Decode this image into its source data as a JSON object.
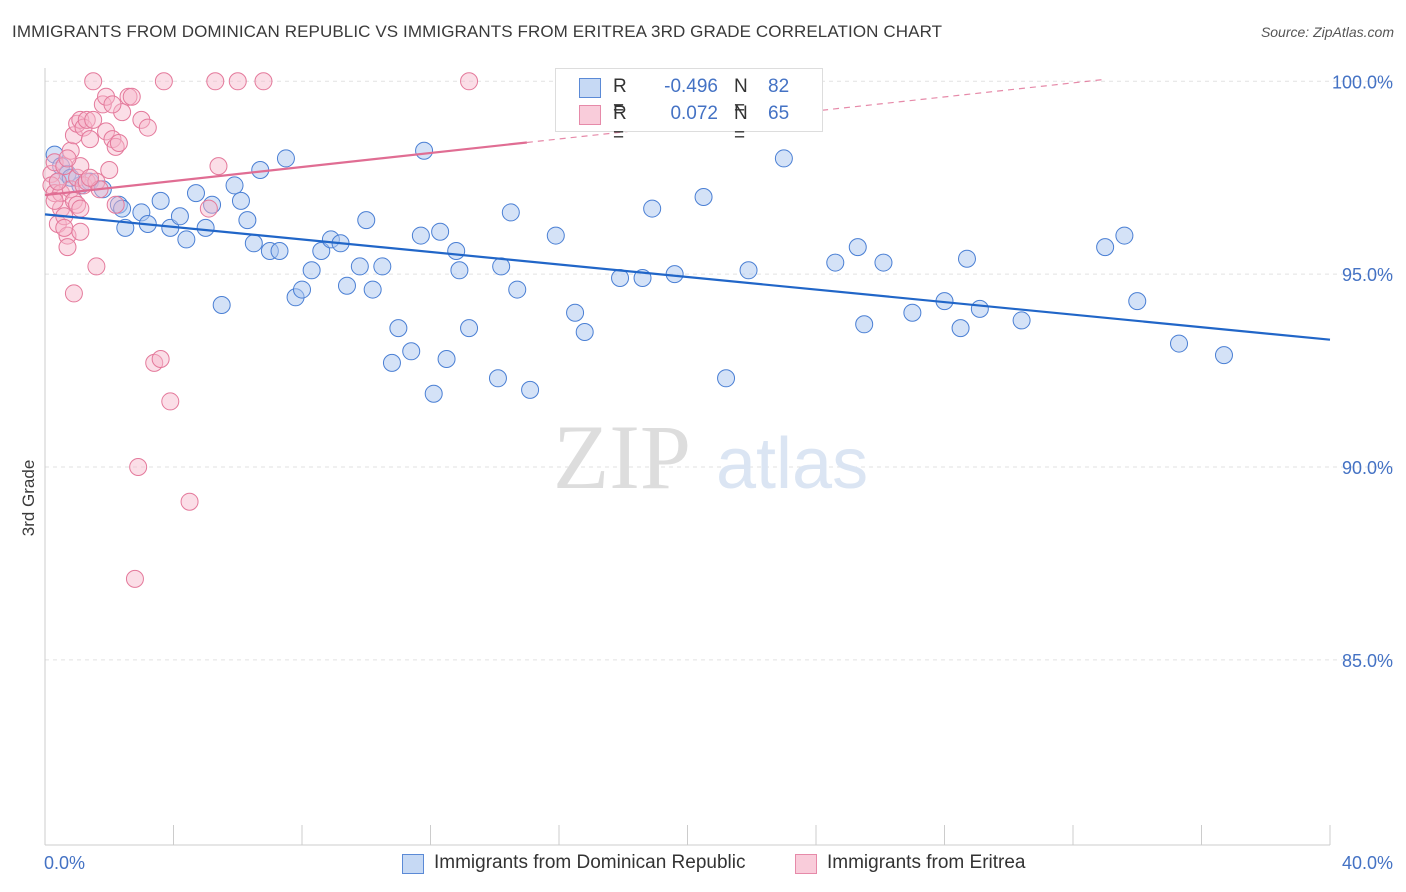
{
  "header": {
    "title": "IMMIGRANTS FROM DOMINICAN REPUBLIC VS IMMIGRANTS FROM ERITREA 3RD GRADE CORRELATION CHART",
    "source": "Source: ZipAtlas.com"
  },
  "watermark": {
    "zip": "ZIP",
    "atlas": "atlas"
  },
  "legend": {
    "r_label": "R =",
    "n_label": "N =",
    "rows": [
      {
        "r": "-0.496",
        "n": "82"
      },
      {
        "r": "0.072",
        "n": "65"
      }
    ]
  },
  "colors": {
    "blue_fill": "#a9c6ef",
    "blue_stroke": "#4a7fd4",
    "blue_line": "#2166c8",
    "pink_fill": "#f6b6c9",
    "pink_stroke": "#e4799b",
    "pink_line": "#e06d93",
    "tick_text": "#4472c4"
  },
  "chart_data": {
    "type": "scatter",
    "title": "IMMIGRANTS FROM DOMINICAN REPUBLIC VS IMMIGRANTS FROM ERITREA 3RD GRADE CORRELATION CHART",
    "xlabel": "",
    "ylabel": "3rd Grade",
    "xlim": [
      0,
      40
    ],
    "ylim": [
      80.2,
      100.5
    ],
    "x_tick_labels": [
      "0.0%",
      "40.0%"
    ],
    "y_ticks": [
      85,
      90,
      95,
      100
    ],
    "y_tick_labels": [
      "85.0%",
      "90.0%",
      "95.0%",
      "100.0%"
    ],
    "grid": true,
    "legend_position": "bottom",
    "series": [
      {
        "name": "Immigrants from Dominican Republic",
        "color": "#a9c6ef",
        "trend": {
          "x": [
            0,
            40
          ],
          "y": [
            96.55,
            93.3
          ],
          "dashed_from_x": null
        },
        "points": [
          [
            0.3,
            98.1
          ],
          [
            0.5,
            97.8
          ],
          [
            0.7,
            97.6
          ],
          [
            0.4,
            97.4
          ],
          [
            1.1,
            97.3
          ],
          [
            1.4,
            97.4
          ],
          [
            1.8,
            97.2
          ],
          [
            2.3,
            96.8
          ],
          [
            2.4,
            96.7
          ],
          [
            2.5,
            96.2
          ],
          [
            3.0,
            96.6
          ],
          [
            3.2,
            96.3
          ],
          [
            3.6,
            96.9
          ],
          [
            3.9,
            96.2
          ],
          [
            4.2,
            96.5
          ],
          [
            4.4,
            95.9
          ],
          [
            4.7,
            97.1
          ],
          [
            5.0,
            96.2
          ],
          [
            5.2,
            96.8
          ],
          [
            5.5,
            94.2
          ],
          [
            5.9,
            97.3
          ],
          [
            6.1,
            96.9
          ],
          [
            6.3,
            96.4
          ],
          [
            6.5,
            95.8
          ],
          [
            6.7,
            97.7
          ],
          [
            7.0,
            95.6
          ],
          [
            7.3,
            95.6
          ],
          [
            7.5,
            98.0
          ],
          [
            7.8,
            94.4
          ],
          [
            8.0,
            94.6
          ],
          [
            8.3,
            95.1
          ],
          [
            8.6,
            95.6
          ],
          [
            8.9,
            95.9
          ],
          [
            9.2,
            95.8
          ],
          [
            9.4,
            94.7
          ],
          [
            9.8,
            95.2
          ],
          [
            10.0,
            96.4
          ],
          [
            10.2,
            94.6
          ],
          [
            10.5,
            95.2
          ],
          [
            10.8,
            92.7
          ],
          [
            11.0,
            93.6
          ],
          [
            11.4,
            93.0
          ],
          [
            11.7,
            96.0
          ],
          [
            11.8,
            98.2
          ],
          [
            12.1,
            91.9
          ],
          [
            12.3,
            96.1
          ],
          [
            12.5,
            92.8
          ],
          [
            12.8,
            95.6
          ],
          [
            12.9,
            95.1
          ],
          [
            13.2,
            93.6
          ],
          [
            14.1,
            92.3
          ],
          [
            14.2,
            95.2
          ],
          [
            14.5,
            96.6
          ],
          [
            14.7,
            94.6
          ],
          [
            15.1,
            92.0
          ],
          [
            15.9,
            96.0
          ],
          [
            16.5,
            94.0
          ],
          [
            16.8,
            93.5
          ],
          [
            17.9,
            94.9
          ],
          [
            18.6,
            94.9
          ],
          [
            18.9,
            96.7
          ],
          [
            19.6,
            95.0
          ],
          [
            20.5,
            97.0
          ],
          [
            21.2,
            92.3
          ],
          [
            21.9,
            95.1
          ],
          [
            23.0,
            98.0
          ],
          [
            24.6,
            95.3
          ],
          [
            25.3,
            95.7
          ],
          [
            25.5,
            93.7
          ],
          [
            26.1,
            95.3
          ],
          [
            27.0,
            94.0
          ],
          [
            28.0,
            94.3
          ],
          [
            28.5,
            93.6
          ],
          [
            28.7,
            95.4
          ],
          [
            29.1,
            94.1
          ],
          [
            30.4,
            93.8
          ],
          [
            33.0,
            95.7
          ],
          [
            33.6,
            96.0
          ],
          [
            34.0,
            94.3
          ],
          [
            35.3,
            93.2
          ],
          [
            36.7,
            92.9
          ],
          [
            0.8,
            97.5
          ]
        ]
      },
      {
        "name": "Immigrants from Eritrea",
        "color": "#f6b6c9",
        "trend": {
          "x": [
            0,
            33
          ],
          "y": [
            97.05,
            100.05
          ],
          "dashed_from_x": 15.0
        },
        "points": [
          [
            0.2,
            97.6
          ],
          [
            0.2,
            97.3
          ],
          [
            0.3,
            97.9
          ],
          [
            0.3,
            97.1
          ],
          [
            0.4,
            96.3
          ],
          [
            0.5,
            96.7
          ],
          [
            0.5,
            97.1
          ],
          [
            0.6,
            97.8
          ],
          [
            0.6,
            96.5
          ],
          [
            0.7,
            96.0
          ],
          [
            0.7,
            95.7
          ],
          [
            0.8,
            98.2
          ],
          [
            0.8,
            97.2
          ],
          [
            0.9,
            98.6
          ],
          [
            0.9,
            96.9
          ],
          [
            1.0,
            98.9
          ],
          [
            1.0,
            97.5
          ],
          [
            1.0,
            96.8
          ],
          [
            1.1,
            99.0
          ],
          [
            1.1,
            97.8
          ],
          [
            1.1,
            96.7
          ],
          [
            1.2,
            98.8
          ],
          [
            1.2,
            97.3
          ],
          [
            1.3,
            99.0
          ],
          [
            1.3,
            97.4
          ],
          [
            1.4,
            98.5
          ],
          [
            1.5,
            100.0
          ],
          [
            1.5,
            99.0
          ],
          [
            1.6,
            97.4
          ],
          [
            1.6,
            95.2
          ],
          [
            1.7,
            97.2
          ],
          [
            1.8,
            99.4
          ],
          [
            1.9,
            99.6
          ],
          [
            1.9,
            98.7
          ],
          [
            2.0,
            97.7
          ],
          [
            2.1,
            98.5
          ],
          [
            2.2,
            96.8
          ],
          [
            2.2,
            98.3
          ],
          [
            2.3,
            98.4
          ],
          [
            2.4,
            99.2
          ],
          [
            2.6,
            99.6
          ],
          [
            2.7,
            99.6
          ],
          [
            2.8,
            87.1
          ],
          [
            2.9,
            90.0
          ],
          [
            3.0,
            99.0
          ],
          [
            3.2,
            98.8
          ],
          [
            3.4,
            92.7
          ],
          [
            3.6,
            92.8
          ],
          [
            3.7,
            100.0
          ],
          [
            3.9,
            91.7
          ],
          [
            4.5,
            89.1
          ],
          [
            5.1,
            96.7
          ],
          [
            5.3,
            100.0
          ],
          [
            5.4,
            97.8
          ],
          [
            6.0,
            100.0
          ],
          [
            6.8,
            100.0
          ],
          [
            13.2,
            100.0
          ],
          [
            0.9,
            94.5
          ],
          [
            0.3,
            96.9
          ],
          [
            0.4,
            97.4
          ],
          [
            0.6,
            96.2
          ],
          [
            0.7,
            98.0
          ],
          [
            1.1,
            96.1
          ],
          [
            1.4,
            97.5
          ],
          [
            2.1,
            99.4
          ]
        ]
      }
    ]
  }
}
